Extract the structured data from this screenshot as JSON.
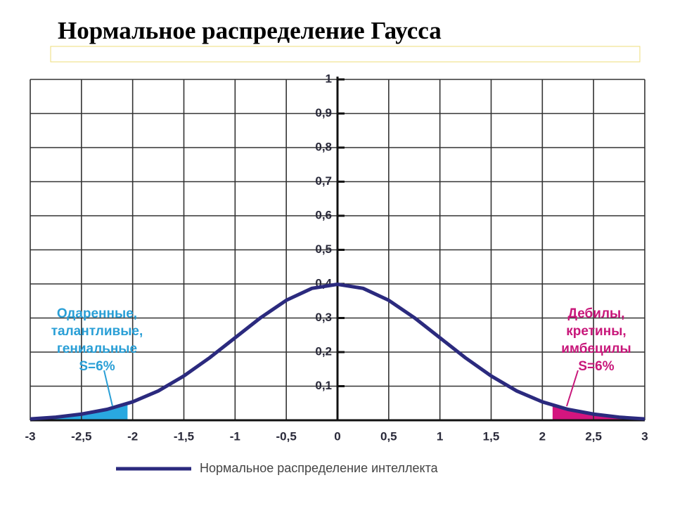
{
  "chart_data": {
    "type": "line",
    "title": "Нормальное распределение Гаусса",
    "x": [
      -3,
      -2.75,
      -2.5,
      -2.25,
      -2,
      -1.75,
      -1.5,
      -1.25,
      -1,
      -0.75,
      -0.5,
      -0.25,
      0,
      0.25,
      0.5,
      0.75,
      1,
      1.25,
      1.5,
      1.75,
      2,
      2.25,
      2.5,
      2.75,
      3
    ],
    "series": [
      {
        "name": "Нормальное распределение интеллекта",
        "color": "#2b2a7e",
        "values": [
          0.004,
          0.009,
          0.018,
          0.032,
          0.054,
          0.086,
          0.13,
          0.183,
          0.242,
          0.301,
          0.352,
          0.387,
          0.399,
          0.387,
          0.352,
          0.301,
          0.242,
          0.183,
          0.13,
          0.086,
          0.054,
          0.032,
          0.018,
          0.009,
          0.004
        ]
      }
    ],
    "xlim": [
      -3,
      3
    ],
    "ylim": [
      0,
      1
    ],
    "xticks": [
      -3,
      {
        "value": -2.5,
        "label": "-2,5"
      },
      -2,
      {
        "value": -1.5,
        "label": "-1,5"
      },
      -1,
      {
        "value": -0.5,
        "label": "-0,5"
      },
      0,
      {
        "value": 0.5,
        "label": "0,5"
      },
      1,
      {
        "value": 1.5,
        "label": "1,5"
      },
      2,
      {
        "value": 2.5,
        "label": "2,5"
      },
      3
    ],
    "yticks": [
      {
        "value": 0.1,
        "label": "0,1"
      },
      {
        "value": 0.2,
        "label": "0,2"
      },
      {
        "value": 0.3,
        "label": "0,3"
      },
      {
        "value": 0.4,
        "label": "0,4"
      },
      {
        "value": 0.5,
        "label": "0,5"
      },
      {
        "value": 0.6,
        "label": "0,6"
      },
      {
        "value": 0.7,
        "label": "0,7"
      },
      {
        "value": 0.8,
        "label": "0,8"
      },
      {
        "value": 0.9,
        "label": "0,9"
      },
      1
    ],
    "grid": true,
    "regions": [
      {
        "x0": -3,
        "x1": -2.05,
        "color": "#29a8e0"
      },
      {
        "x0": 2.1,
        "x1": 3,
        "color": "#d4157f"
      }
    ],
    "annotations": [
      {
        "lines": [
          "Одаренные,",
          "талантливые,",
          "гениальные",
          "S=6%"
        ],
        "color": "#2a9fd6"
      },
      {
        "lines": [
          "Дебилы,",
          "кретины,",
          "имбецилы",
          "S=6%"
        ],
        "color": "#c8177a"
      }
    ]
  }
}
